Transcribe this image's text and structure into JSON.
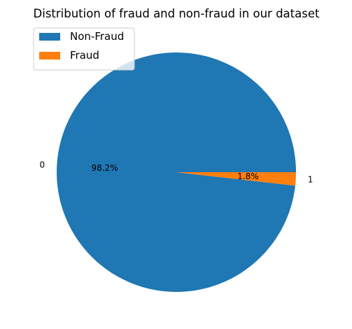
{
  "chart_data": {
    "type": "pie",
    "title": "Distribution of fraud and non-fraud in our dataset",
    "slices": [
      {
        "label": "0",
        "legend": "Non-Fraud",
        "value": 98.2,
        "pct_label": "98.2%",
        "color": "#1f77b4"
      },
      {
        "label": "1",
        "legend": "Fraud",
        "value": 1.8,
        "pct_label": "1.8%",
        "color": "#ff7f0e"
      }
    ],
    "start_angle_deg": 0,
    "direction": "counterclockwise",
    "legend_position": "upper-left"
  }
}
